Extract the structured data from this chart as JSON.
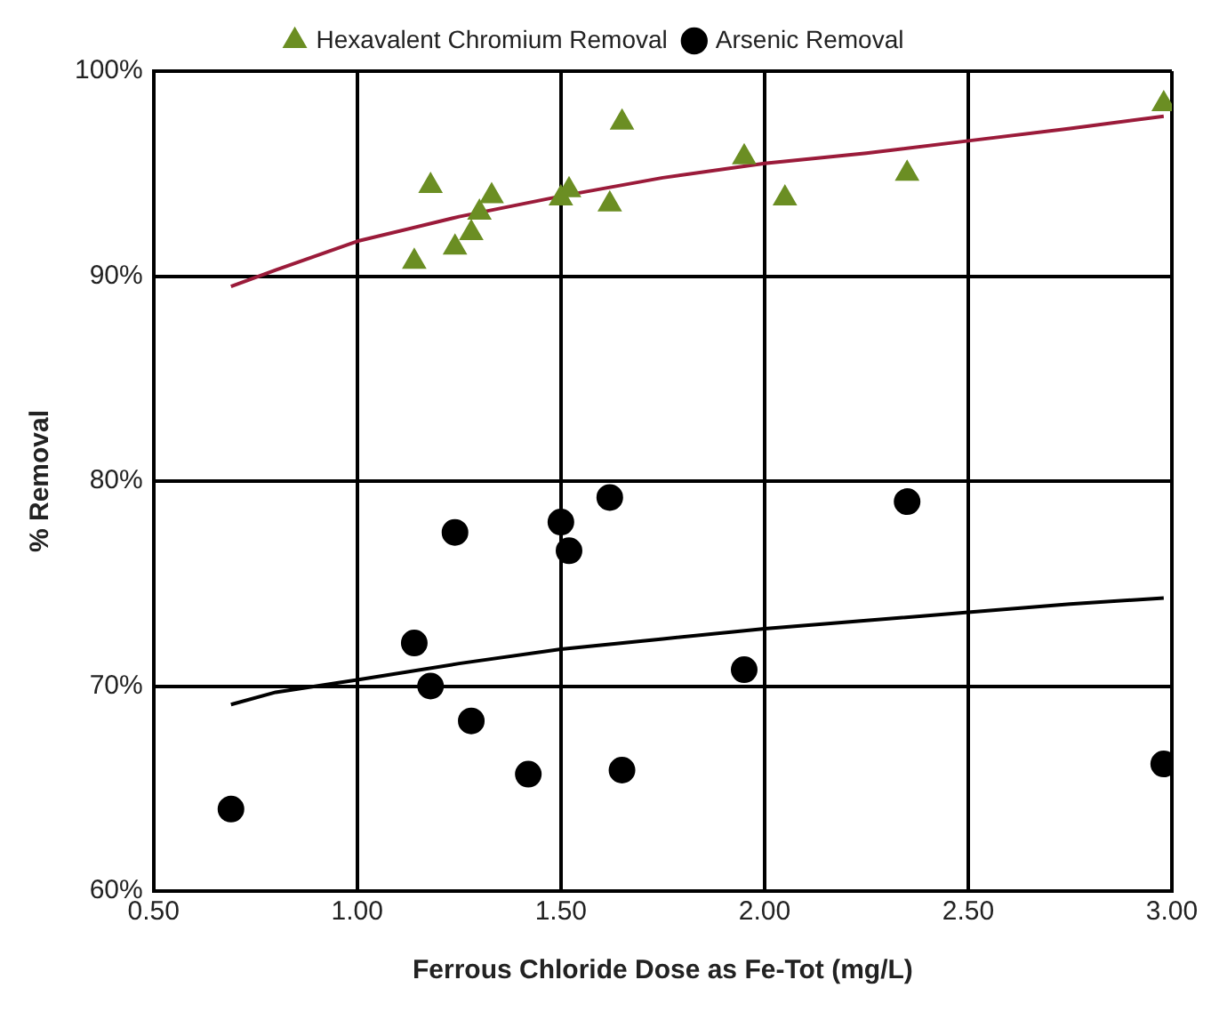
{
  "chart_data": {
    "type": "scatter",
    "xlabel": "Ferrous Chloride Dose as Fe-Tot (mg/L)",
    "ylabel": "% Removal",
    "series": [
      {
        "name": "Hexavalent Chromium Removal",
        "color": "#6b8e23",
        "marker": "triangle",
        "x": [
          1.14,
          1.18,
          1.24,
          1.28,
          1.3,
          1.33,
          1.5,
          1.52,
          1.62,
          1.65,
          1.95,
          2.05,
          2.35,
          2.98
        ],
        "values": [
          90.7,
          94.4,
          91.4,
          92.1,
          93.1,
          93.9,
          93.8,
          94.2,
          93.5,
          97.5,
          95.8,
          93.8,
          95.0,
          98.4
        ]
      },
      {
        "name": "Arsenic Removal",
        "color": "#000000",
        "marker": "circle",
        "x": [
          0.69,
          1.14,
          1.18,
          1.24,
          1.28,
          1.42,
          1.5,
          1.52,
          1.62,
          1.65,
          1.95,
          2.35,
          2.98
        ],
        "values": [
          64.0,
          72.1,
          70.0,
          77.5,
          68.3,
          65.7,
          78.0,
          76.6,
          79.2,
          65.9,
          70.8,
          79.0,
          66.2
        ]
      },
      {
        "type": "line",
        "color": "#9b1b3a",
        "marker": "none",
        "x": [
          0.69,
          0.8,
          1.0,
          1.25,
          1.5,
          1.75,
          2.0,
          2.25,
          2.5,
          2.75,
          2.98
        ],
        "values": [
          89.5,
          90.3,
          91.7,
          92.9,
          93.9,
          94.8,
          95.5,
          96.0,
          96.6,
          97.2,
          97.8
        ]
      },
      {
        "type": "line",
        "color": "#000000",
        "marker": "none",
        "x": [
          0.69,
          0.8,
          1.0,
          1.25,
          1.5,
          1.75,
          2.0,
          2.25,
          2.5,
          2.75,
          2.98
        ],
        "values": [
          69.1,
          69.7,
          70.3,
          71.1,
          71.8,
          72.3,
          72.8,
          73.2,
          73.6,
          74.0,
          74.3
        ]
      }
    ],
    "xlim": [
      0.5,
      3.0
    ],
    "xticks": [
      {
        "value": 0.5,
        "label": "0.50"
      },
      {
        "value": 1.0,
        "label": "1.00"
      },
      {
        "value": 1.5,
        "label": "1.50"
      },
      {
        "value": 2.0,
        "label": "2.00"
      },
      {
        "value": 2.5,
        "label": "2.50"
      },
      {
        "value": 3.0,
        "label": "3.00"
      }
    ],
    "ylim": [
      60,
      100
    ],
    "yticks": [
      {
        "value": 60,
        "label": "60%"
      },
      {
        "value": 70,
        "label": "70%"
      },
      {
        "value": 80,
        "label": "80%"
      },
      {
        "value": 90,
        "label": "90%"
      },
      {
        "value": 100,
        "label": "100%"
      }
    ],
    "grid": true,
    "legend": "top"
  }
}
